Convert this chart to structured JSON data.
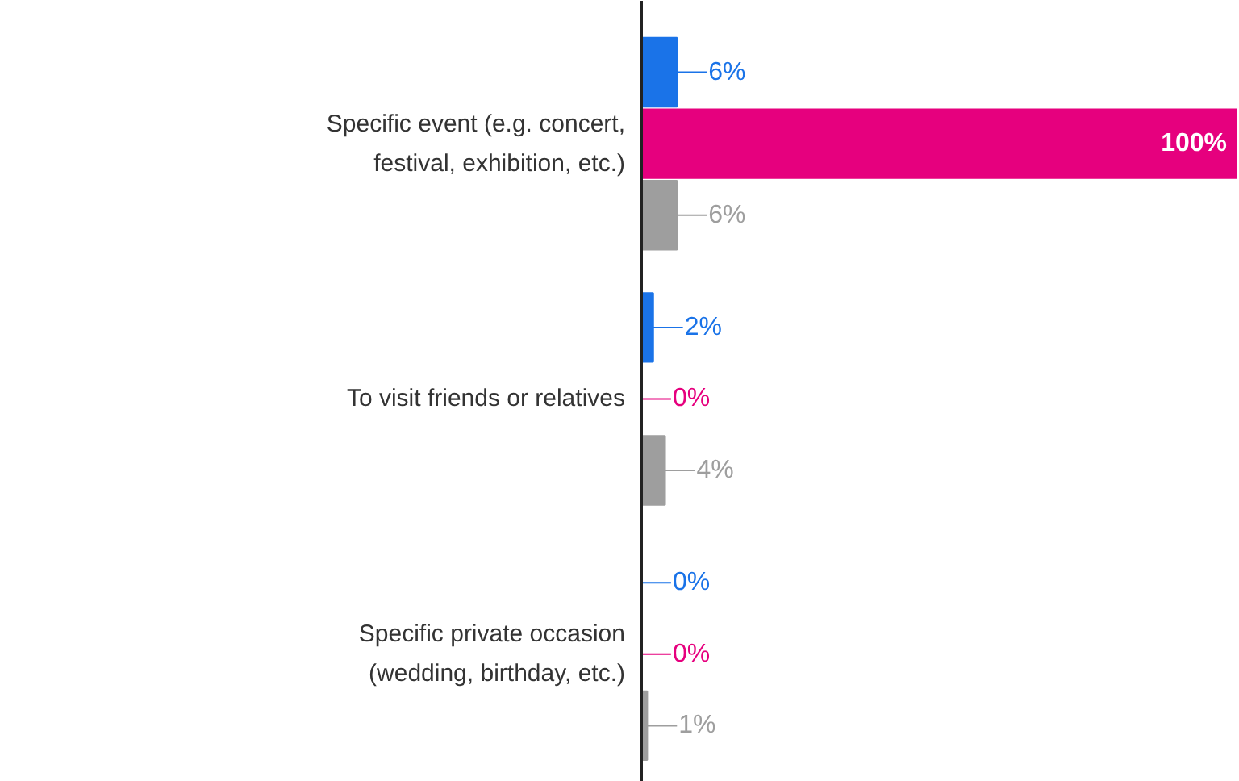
{
  "chart_data": {
    "type": "bar",
    "orientation": "horizontal",
    "categories": [
      "Specific event (e.g. concert, festival, exhibition, etc.)",
      "To visit friends or relatives",
      "Specific private occasion (wedding, birthday, etc.)"
    ],
    "series": [
      {
        "color": "#1a73e8",
        "values": [
          6,
          2,
          0
        ],
        "value_labels": [
          "6%",
          "2%",
          "0%"
        ]
      },
      {
        "color": "#e6007e",
        "values": [
          100,
          0,
          0
        ],
        "value_labels": [
          "100%",
          "0%",
          "0%"
        ]
      },
      {
        "color": "#9e9e9e",
        "values": [
          6,
          4,
          1
        ],
        "value_labels": [
          "6%",
          "4%",
          "1%"
        ]
      }
    ],
    "xlim": [
      0,
      100
    ],
    "grid": false,
    "tick_labels": "y"
  }
}
